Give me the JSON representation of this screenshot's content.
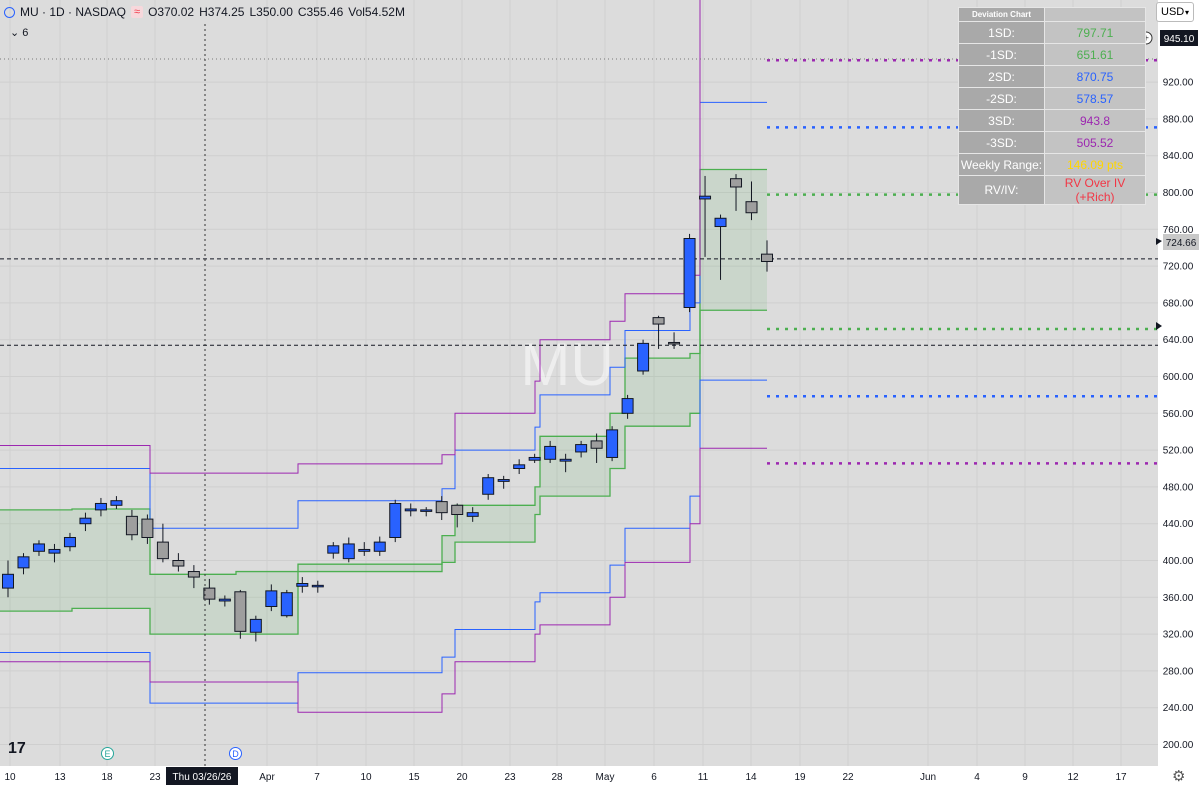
{
  "header": {
    "symbol": "MU · 1D · NASDAQ",
    "open": "O370.02",
    "high": "H374.25",
    "low": "L350.00",
    "close": "C355.46",
    "volume": "Vol54.52M",
    "indicator_count": "6"
  },
  "currency": "USD",
  "watermark": "MU",
  "colors": {
    "up": "#2962ff",
    "down": "#9e9e9e",
    "one_sd": "#4caf50",
    "two_sd": "#2962ff",
    "three_sd": "#9c27b0",
    "weekly_range": "#ffd600",
    "rv_iv": "#f23645"
  },
  "deviation_table": {
    "title": "Deviation Chart",
    "rows": [
      {
        "label": "1SD:",
        "value": "797.71",
        "color": "#4caf50"
      },
      {
        "label": "-1SD:",
        "value": "651.61",
        "color": "#4caf50"
      },
      {
        "label": "2SD:",
        "value": "870.75",
        "color": "#2962ff"
      },
      {
        "label": "-2SD:",
        "value": "578.57",
        "color": "#2962ff"
      },
      {
        "label": "3SD:",
        "value": "943.8",
        "color": "#9c27b0"
      },
      {
        "label": "-3SD:",
        "value": "505.52",
        "color": "#9c27b0"
      },
      {
        "label": "Weekly Range:",
        "value": "146.09 pts",
        "color": "#ffd600"
      },
      {
        "label": "RV/IV:",
        "value": "RV Over IV (+Rich)",
        "color": "#f23645"
      }
    ]
  },
  "price_labels": {
    "marker_945": "945.10",
    "last_price": "724.66"
  },
  "crosshair_date": "Thu 03/26/26",
  "events": [
    "E",
    "D"
  ],
  "chart_data": {
    "type": "candlestick",
    "y_ticks": [
      200,
      240,
      280,
      320,
      360,
      400,
      440,
      480,
      520,
      560,
      600,
      640,
      680,
      720,
      760,
      800,
      840,
      880,
      920
    ],
    "x_ticks": [
      "10",
      "13",
      "18",
      "23",
      "Apr",
      "7",
      "10",
      "15",
      "20",
      "23",
      "28",
      "May",
      "6",
      "11",
      "14",
      "19",
      "22",
      "Jun",
      "4",
      "9",
      "12",
      "17"
    ],
    "candles": [
      [
        370,
        385,
        360,
        400
      ],
      [
        392,
        404,
        385,
        408
      ],
      [
        410,
        418,
        405,
        422
      ],
      [
        408,
        412,
        398,
        418
      ],
      [
        415,
        425,
        410,
        430
      ],
      [
        440,
        446,
        432,
        452
      ],
      [
        455,
        462,
        448,
        468
      ],
      [
        460,
        465,
        456,
        470
      ],
      [
        448,
        428,
        422,
        455
      ],
      [
        445,
        425,
        418,
        450
      ],
      [
        420,
        402,
        398,
        440
      ],
      [
        400,
        394,
        388,
        408
      ],
      [
        388,
        382,
        370,
        395
      ],
      [
        370,
        358,
        352,
        380
      ],
      [
        356,
        358,
        350,
        362
      ],
      [
        366,
        323,
        315,
        368
      ],
      [
        322,
        336,
        312,
        340
      ],
      [
        350,
        367,
        345,
        374
      ],
      [
        340,
        365,
        338,
        368
      ],
      [
        372,
        375,
        365,
        382
      ],
      [
        372,
        373,
        365,
        378
      ],
      [
        408,
        416,
        402,
        420
      ],
      [
        402,
        418,
        398,
        425
      ],
      [
        410,
        412,
        405,
        420
      ],
      [
        410,
        420,
        405,
        426
      ],
      [
        425,
        462,
        420,
        466
      ],
      [
        454,
        456,
        448,
        462
      ],
      [
        454,
        455,
        448,
        458
      ],
      [
        464,
        452,
        444,
        470
      ],
      [
        460,
        450,
        436,
        462
      ],
      [
        448,
        452,
        442,
        458
      ],
      [
        472,
        490,
        466,
        494
      ],
      [
        486,
        488,
        478,
        492
      ],
      [
        500,
        504,
        494,
        510
      ],
      [
        509,
        512,
        506,
        516
      ],
      [
        510,
        524,
        506,
        530
      ],
      [
        508,
        510,
        496,
        516
      ],
      [
        518,
        526,
        512,
        530
      ],
      [
        530,
        522,
        506,
        538
      ],
      [
        512,
        542,
        508,
        546
      ],
      [
        560,
        576,
        554,
        580
      ],
      [
        606,
        636,
        602,
        640
      ],
      [
        664,
        657,
        630,
        666
      ],
      [
        637,
        636,
        630,
        648
      ],
      [
        675,
        750,
        670,
        755
      ],
      [
        793,
        796,
        730,
        818
      ],
      [
        763,
        772,
        705,
        776
      ],
      [
        815,
        806,
        780,
        820
      ],
      [
        790,
        778,
        770,
        812
      ],
      [
        733,
        725,
        714,
        748
      ]
    ],
    "bands": {
      "one_sd_upper": [
        [
          455,
          456,
          385,
          388,
          388,
          388,
          388,
          427,
          460,
          480,
          535,
          560,
          620,
          625,
          825,
          825
        ]
      ],
      "one_sd_lower": [
        [
          345,
          348,
          320,
          320,
          396,
          396,
          396,
          398,
          420,
          450,
          470,
          500,
          546,
          560,
          672,
          672
        ]
      ],
      "two_sd": {
        "upper": [
          500,
          500,
          435,
          435,
          465,
          465,
          465,
          478,
          520,
          545,
          580,
          610,
          650,
          680,
          898,
          898
        ],
        "lower": [
          300,
          300,
          245,
          245,
          278,
          278,
          278,
          295,
          325,
          355,
          365,
          395,
          435,
          470,
          596,
          596
        ]
      },
      "three_sd": {
        "upper": [
          525,
          525,
          495,
          495,
          505,
          505,
          505,
          515,
          560,
          595,
          640,
          660,
          690,
          710,
          1012,
          1012
        ],
        "lower": [
          290,
          290,
          268,
          268,
          235,
          235,
          235,
          255,
          290,
          320,
          330,
          360,
          398,
          440,
          522,
          522
        ]
      }
    },
    "levels": [
      {
        "name": "3SD",
        "value": 943.8
      },
      {
        "name": "2SD",
        "value": 870.75
      },
      {
        "name": "1SD",
        "value": 797.71
      },
      {
        "name": "-1SD",
        "value": 651.61
      },
      {
        "name": "-2SD",
        "value": 578.57
      },
      {
        "name": "-3SD",
        "value": 505.52
      }
    ],
    "last_price": 724.66,
    "ref_price": 634
  }
}
